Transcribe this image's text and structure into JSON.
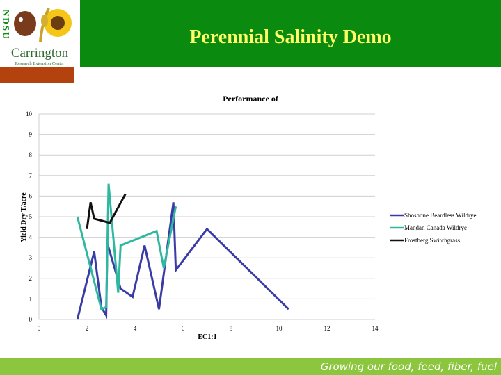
{
  "header": {
    "title": "Perennial Salinity Demo",
    "logo": {
      "letters": "NDSU",
      "name": "Carrington",
      "subtitle": "Research Extension Center",
      "icon": "sunflower-wheat-cow-logo-icon"
    }
  },
  "footer": {
    "tagline": "Growing our food, feed, fiber, fuel"
  },
  "colors": {
    "header_green": "#0b8a10",
    "title_yellow": "#ffff66",
    "accent_bar": "#b3420f",
    "footer_green": "#8cc63f"
  },
  "chart_data": {
    "type": "line",
    "title": "Performance of",
    "xlabel": "EC1:1",
    "ylabel": "Yield Dry T/acre",
    "xlim": [
      0,
      14
    ],
    "ylim": [
      0,
      10
    ],
    "x_ticks": [
      0,
      2,
      4,
      6,
      8,
      10,
      12,
      14
    ],
    "y_ticks": [
      0,
      1,
      2,
      3,
      4,
      5,
      6,
      7,
      8,
      9,
      10
    ],
    "grid": "horizontal",
    "legend_position": "right",
    "series": [
      {
        "name": "Shoshone Beardless Wildrye",
        "color": "#3b3ba6",
        "points": [
          [
            1.6,
            0
          ],
          [
            2.3,
            3.3
          ],
          [
            2.6,
            0.6
          ],
          [
            2.8,
            0.2
          ],
          [
            2.85,
            3.7
          ],
          [
            3.4,
            1.5
          ],
          [
            3.9,
            1.1
          ],
          [
            4.4,
            3.6
          ],
          [
            5.0,
            0.5
          ],
          [
            5.6,
            5.7
          ],
          [
            5.7,
            2.4
          ],
          [
            7.0,
            4.4
          ],
          [
            10.4,
            0.5
          ]
        ]
      },
      {
        "name": "Mandan Canada Wildrye",
        "color": "#2eb8a0",
        "points": [
          [
            1.6,
            5.0
          ],
          [
            2.6,
            0.5
          ],
          [
            2.8,
            0.6
          ],
          [
            2.9,
            6.6
          ],
          [
            3.3,
            1.3
          ],
          [
            3.4,
            3.6
          ],
          [
            4.9,
            4.3
          ],
          [
            5.2,
            2.5
          ],
          [
            5.7,
            5.5
          ]
        ]
      },
      {
        "name": "Frostberg Switchgrass",
        "color": "#111111",
        "points": [
          [
            2.0,
            4.4
          ],
          [
            2.15,
            5.7
          ],
          [
            2.3,
            4.9
          ],
          [
            2.95,
            4.7
          ],
          [
            3.6,
            6.1
          ]
        ]
      }
    ]
  }
}
